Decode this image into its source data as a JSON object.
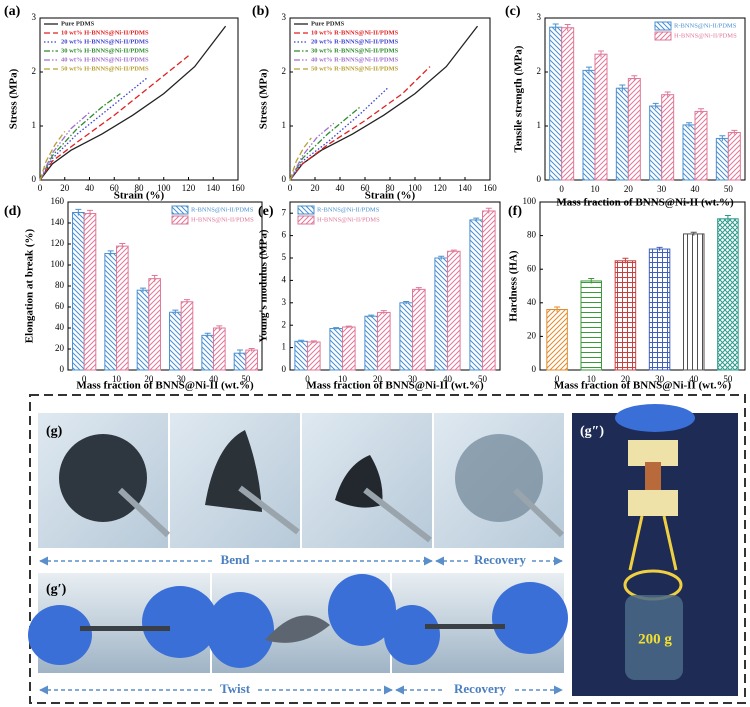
{
  "chart_data": [
    {
      "type": "line",
      "label": "(a)",
      "xlabel": "Strain (%)",
      "ylabel": "Stress (MPa)",
      "xlim": [
        0,
        160
      ],
      "xticks": [
        0,
        20,
        40,
        60,
        80,
        100,
        120,
        140,
        160
      ],
      "ylim": [
        0,
        3
      ],
      "yticks": [
        0,
        1,
        2,
        3
      ],
      "legend": "upper left",
      "series": [
        {
          "name": "Pure PDMS",
          "color": "#222222",
          "style": "solid",
          "x": [
            0,
            10,
            25,
            50,
            75,
            100,
            125,
            150
          ],
          "values": [
            0,
            0.3,
            0.55,
            0.85,
            1.2,
            1.6,
            2.1,
            2.85
          ]
        },
        {
          "name": "10 wt% H-BNNS@Ni-II/PDMS",
          "color": "#e02020",
          "style": "dashed",
          "x": [
            0,
            10,
            30,
            60,
            90,
            120
          ],
          "values": [
            0,
            0.35,
            0.7,
            1.2,
            1.75,
            2.3
          ]
        },
        {
          "name": "20 wt% H-BNNS@Ni-II/PDMS",
          "color": "#3f3fd0",
          "style": "dotted",
          "x": [
            0,
            10,
            30,
            60,
            87
          ],
          "values": [
            0,
            0.4,
            0.85,
            1.4,
            1.9
          ]
        },
        {
          "name": "30 wt% H-BNNS@Ni-II/PDMS",
          "color": "#2e8b2e",
          "style": "dashdot",
          "x": [
            0,
            10,
            30,
            50,
            65
          ],
          "values": [
            0,
            0.45,
            0.95,
            1.35,
            1.6
          ]
        },
        {
          "name": "40 wt% H-BNNS@Ni-II/PDMS",
          "color": "#a070d0",
          "style": "dashdotdot",
          "x": [
            0,
            10,
            25,
            40
          ],
          "values": [
            0,
            0.5,
            0.95,
            1.25
          ]
        },
        {
          "name": "50 wt% H-BNNS@Ni-II/PDMS",
          "color": "#b5a030",
          "style": "dashed",
          "x": [
            0,
            5,
            12,
            20
          ],
          "values": [
            0,
            0.35,
            0.65,
            0.9
          ]
        }
      ]
    },
    {
      "type": "line",
      "label": "(b)",
      "xlabel": "Strain (%)",
      "ylabel": "Stress (MPa)",
      "xlim": [
        0,
        160
      ],
      "xticks": [
        0,
        20,
        40,
        60,
        80,
        100,
        120,
        140,
        160
      ],
      "ylim": [
        0,
        3
      ],
      "yticks": [
        0,
        1,
        2,
        3
      ],
      "legend": "upper left",
      "series": [
        {
          "name": "Pure PDMS",
          "color": "#222222",
          "style": "solid",
          "x": [
            0,
            10,
            25,
            50,
            75,
            100,
            125,
            150
          ],
          "values": [
            0,
            0.3,
            0.55,
            0.85,
            1.2,
            1.6,
            2.1,
            2.85
          ]
        },
        {
          "name": "10 wt% R-BNNS@Ni-II/PDMS",
          "color": "#e02020",
          "style": "dashed",
          "x": [
            0,
            10,
            30,
            60,
            90,
            112
          ],
          "values": [
            0,
            0.3,
            0.65,
            1.1,
            1.6,
            2.1
          ]
        },
        {
          "name": "20 wt% R-BNNS@Ni-II/PDMS",
          "color": "#3f3fd0",
          "style": "dotted",
          "x": [
            0,
            10,
            30,
            55,
            78
          ],
          "values": [
            0,
            0.35,
            0.7,
            1.2,
            1.7
          ]
        },
        {
          "name": "30 wt% R-BNNS@Ni-II/PDMS",
          "color": "#2e8b2e",
          "style": "dashdot",
          "x": [
            0,
            10,
            30,
            56
          ],
          "values": [
            0,
            0.4,
            0.85,
            1.35
          ]
        },
        {
          "name": "40 wt% R-BNNS@Ni-II/PDMS",
          "color": "#a070d0",
          "style": "dashdotdot",
          "x": [
            0,
            10,
            22,
            35
          ],
          "values": [
            0,
            0.45,
            0.8,
            1.05
          ]
        },
        {
          "name": "50 wt% R-BNNS@Ni-II/PDMS",
          "color": "#b5a030",
          "style": "dashed",
          "x": [
            0,
            5,
            11,
            17
          ],
          "values": [
            0,
            0.35,
            0.6,
            0.78
          ]
        }
      ]
    },
    {
      "type": "bar",
      "label": "(c)",
      "xlabel": "Mass fraction of BNNS@Ni-II (wt.%)",
      "ylabel": "Tensile strength (MPa)",
      "categories": [
        "0",
        "10",
        "20",
        "30",
        "40",
        "50"
      ],
      "ylim": [
        0,
        3
      ],
      "yticks": [
        0,
        1,
        2,
        3
      ],
      "legend": "upper right",
      "series": [
        {
          "name": "R-BNNS@Ni-II/PDMS",
          "color": "#4a90d0",
          "hatch": "backslash",
          "values": [
            2.83,
            2.03,
            1.7,
            1.37,
            1.02,
            0.77
          ],
          "errors": [
            0.06,
            0.06,
            0.06,
            0.05,
            0.04,
            0.05
          ]
        },
        {
          "name": "H-BNNS@Ni-II/PDMS",
          "color": "#e07898",
          "hatch": "slash",
          "values": [
            2.82,
            2.33,
            1.88,
            1.58,
            1.27,
            0.88
          ],
          "errors": [
            0.06,
            0.06,
            0.05,
            0.05,
            0.05,
            0.04
          ]
        }
      ]
    },
    {
      "type": "bar",
      "label": "(d)",
      "xlabel": "Mass fraction of BNNS@Ni-II (wt.%)",
      "ylabel": "Elongation at break (%)",
      "categories": [
        "0",
        "10",
        "20",
        "30",
        "40",
        "50"
      ],
      "ylim": [
        0,
        160
      ],
      "yticks": [
        0,
        20,
        40,
        60,
        80,
        100,
        120,
        140,
        160
      ],
      "legend": "upper right",
      "series": [
        {
          "name": "R-BNNS@Ni-II/PDMS",
          "color": "#4a90d0",
          "hatch": "backslash",
          "values": [
            150,
            111,
            76,
            55,
            33,
            16
          ],
          "errors": [
            3,
            2.5,
            2,
            2,
            2,
            3
          ]
        },
        {
          "name": "H-BNNS@Ni-II/PDMS",
          "color": "#e07898",
          "hatch": "slash",
          "values": [
            149,
            118,
            87,
            65,
            40,
            19
          ],
          "errors": [
            3,
            2.5,
            3,
            2,
            2,
            1.5
          ]
        }
      ]
    },
    {
      "type": "bar",
      "label": "(e)",
      "xlabel": "Mass fraction of BNNS@Ni-II (wt.%)",
      "ylabel": "Young's modulus (MPa)",
      "categories": [
        "0",
        "10",
        "20",
        "30",
        "40",
        "50"
      ],
      "ylim": [
        0,
        7.5
      ],
      "yticks": [
        0,
        1,
        2,
        3,
        4,
        5,
        6,
        7
      ],
      "legend": "upper left",
      "series": [
        {
          "name": "R-BNNS@Ni-II/PDMS",
          "color": "#4a90d0",
          "hatch": "backslash",
          "values": [
            1.28,
            1.85,
            2.4,
            3.0,
            5.0,
            6.7
          ],
          "errors": [
            0.05,
            0.04,
            0.05,
            0.06,
            0.08,
            0.08
          ]
        },
        {
          "name": "H-BNNS@Ni-II/PDMS",
          "color": "#e07898",
          "hatch": "slash",
          "values": [
            1.25,
            1.92,
            2.57,
            3.6,
            5.3,
            7.1
          ],
          "errors": [
            0.05,
            0.04,
            0.08,
            0.08,
            0.05,
            0.12
          ]
        }
      ]
    },
    {
      "type": "bar",
      "label": "(f)",
      "xlabel": "Mass fraction of BNNS@Ni-II (wt.%)",
      "ylabel": "Hardness (HA)",
      "categories": [
        "0",
        "10",
        "20",
        "30",
        "40",
        "50"
      ],
      "ylim": [
        0,
        100
      ],
      "yticks": [
        0,
        20,
        40,
        60,
        80,
        100
      ],
      "series": [
        {
          "colors": [
            "#e08a2a",
            "#3a9a3a",
            "#c84040",
            "#4060c0",
            "#505050",
            "#2a9a8a"
          ],
          "hatches": [
            "slash",
            "hline",
            "grid",
            "grid",
            "vline",
            "cross"
          ],
          "values": [
            36,
            53,
            65,
            72,
            81,
            90
          ],
          "errors": [
            1.5,
            1.5,
            1.5,
            1,
            1,
            2
          ]
        }
      ]
    }
  ],
  "photos": {
    "labels": [
      "(g)",
      "(g′)",
      "(g″)"
    ],
    "captions": [
      "Bend",
      "Recovery",
      "Twist",
      "Recovery"
    ],
    "weight": "200 g"
  }
}
